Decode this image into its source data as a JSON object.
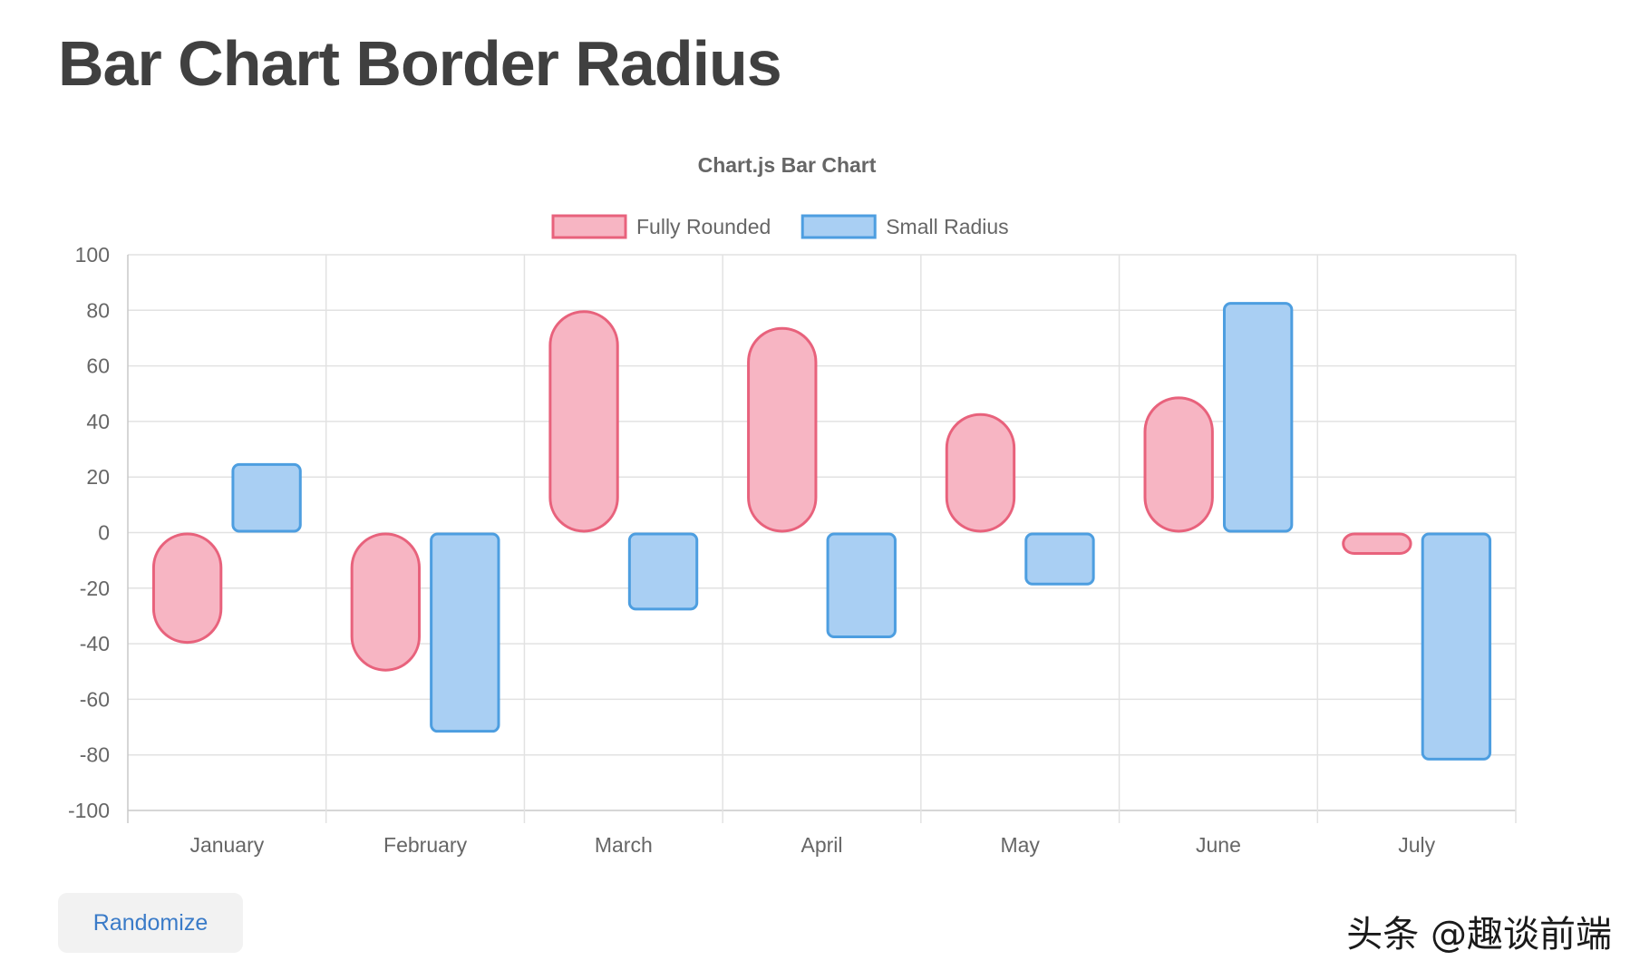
{
  "page": {
    "title": "Bar Chart Border Radius",
    "randomize_label": "Randomize",
    "watermark": "头条 @趣谈前端"
  },
  "chart_data": {
    "type": "bar",
    "title": "Chart.js Bar Chart",
    "categories": [
      "January",
      "February",
      "March",
      "April",
      "May",
      "June",
      "July"
    ],
    "ylim": [
      -100,
      100
    ],
    "ytick_step": 20,
    "grid": true,
    "legend_position": "top",
    "floating": true,
    "series": [
      {
        "name": "Fully Rounded",
        "ranges": [
          [
            -40,
            0
          ],
          [
            -50,
            0
          ],
          [
            0,
            80
          ],
          [
            0,
            74
          ],
          [
            0,
            43
          ],
          [
            0,
            49
          ],
          [
            -8,
            0
          ]
        ],
        "border_color": "#e8627c",
        "fill_color": "#f7b5c3",
        "radius_style": "full"
      },
      {
        "name": "Small Radius",
        "ranges": [
          [
            0,
            25
          ],
          [
            -72,
            0
          ],
          [
            -28,
            0
          ],
          [
            -38,
            0
          ],
          [
            -19,
            0
          ],
          [
            0,
            83
          ],
          [
            -82,
            0
          ]
        ],
        "border_color": "#4d9ee0",
        "fill_color": "#a9cff3",
        "radius_style": "small"
      }
    ]
  }
}
